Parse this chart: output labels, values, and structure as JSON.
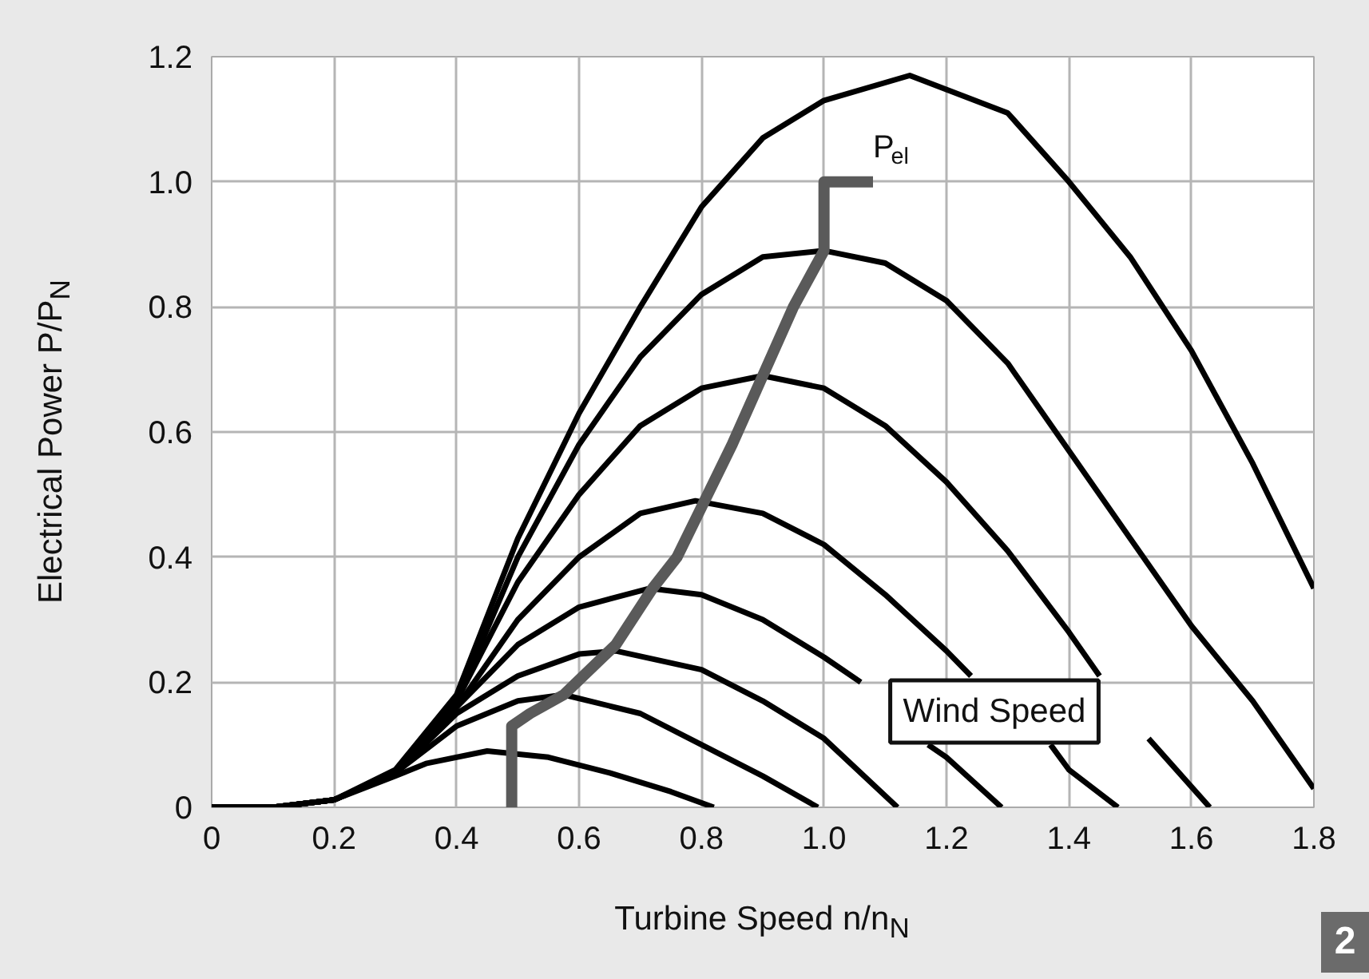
{
  "chart_data": {
    "type": "line",
    "xlabel": "Turbine Speed n/n$_{N}$",
    "ylabel": "Electrical Power P/P$_{N}$",
    "xlim": [
      0,
      1.8
    ],
    "ylim": [
      0,
      1.2
    ],
    "xticks": [
      0,
      0.2,
      0.4,
      0.6,
      0.8,
      {
        "value": 1,
        "label": "1.0"
      },
      1.2,
      1.4,
      1.6,
      1.8
    ],
    "yticks": [
      0,
      0.2,
      0.4,
      0.6,
      0.8,
      {
        "value": 1,
        "label": "1.0"
      },
      1.2
    ],
    "grid": true,
    "legend": false,
    "marker": "none",
    "line_style": "solid",
    "series": [
      {
        "color": "#000000",
        "x": [
          0,
          0.1,
          0.2,
          0.3,
          0.35,
          0.45,
          0.55,
          0.65,
          0.75,
          0.82
        ],
        "values": [
          0,
          0,
          0.012,
          0.05,
          0.07,
          0.09,
          0.08,
          0.055,
          0.025,
          0
        ]
      },
      {
        "color": "#000000",
        "x": [
          0,
          0.1,
          0.2,
          0.3,
          0.4,
          0.5,
          0.575,
          0.7,
          0.8,
          0.9,
          0.99
        ],
        "values": [
          0,
          0,
          0.012,
          0.055,
          0.13,
          0.17,
          0.18,
          0.15,
          0.1,
          0.05,
          0
        ]
      },
      {
        "color": "#000000",
        "x": [
          0,
          0.1,
          0.2,
          0.3,
          0.4,
          0.5,
          0.6,
          0.66,
          0.8,
          0.9,
          1.0,
          1.12
        ],
        "values": [
          0,
          0,
          0.012,
          0.055,
          0.15,
          0.21,
          0.245,
          0.25,
          0.22,
          0.17,
          0.11,
          0
        ]
      },
      {
        "color": "#000000",
        "x": [
          0,
          0.1,
          0.2,
          0.3,
          0.4,
          0.5,
          0.6,
          0.715,
          0.8,
          0.9,
          1.0,
          1.06,
          1.1,
          1.17,
          1.2,
          1.29
        ],
        "values": [
          0,
          0,
          0.012,
          0.055,
          0.16,
          0.26,
          0.32,
          0.35,
          0.34,
          0.3,
          0.24,
          0.2,
          null,
          0.1,
          0.08,
          0
        ]
      },
      {
        "color": "#000000",
        "x": [
          0,
          0.1,
          0.2,
          0.3,
          0.4,
          0.5,
          0.6,
          0.7,
          0.79,
          0.9,
          1.0,
          1.1,
          1.2,
          1.24,
          1.3,
          1.37,
          1.4,
          1.48
        ],
        "values": [
          0,
          0,
          0.012,
          0.055,
          0.16,
          0.3,
          0.4,
          0.47,
          0.49,
          0.47,
          0.42,
          0.34,
          0.25,
          0.21,
          null,
          0.1,
          0.06,
          0
        ]
      },
      {
        "color": "#000000",
        "x": [
          0,
          0.1,
          0.2,
          0.3,
          0.4,
          0.5,
          0.6,
          0.7,
          0.8,
          0.9,
          1.0,
          1.1,
          1.2,
          1.3,
          1.4,
          1.45,
          1.5,
          1.53,
          1.63
        ],
        "values": [
          0,
          0,
          0.012,
          0.055,
          0.17,
          0.36,
          0.5,
          0.61,
          0.67,
          0.69,
          0.67,
          0.61,
          0.52,
          0.41,
          0.28,
          0.21,
          null,
          0.11,
          0
        ]
      },
      {
        "color": "#000000",
        "x": [
          0,
          0.1,
          0.2,
          0.3,
          0.4,
          0.5,
          0.6,
          0.7,
          0.8,
          0.9,
          1.0,
          1.1,
          1.2,
          1.3,
          1.4,
          1.5,
          1.6,
          1.7,
          1.8
        ],
        "values": [
          0,
          0,
          0.012,
          0.055,
          0.17,
          0.4,
          0.58,
          0.72,
          0.82,
          0.88,
          0.89,
          0.87,
          0.81,
          0.71,
          0.57,
          0.43,
          0.29,
          0.17,
          0.03
        ]
      },
      {
        "color": "#000000",
        "x": [
          0,
          0.1,
          0.2,
          0.3,
          0.4,
          0.5,
          0.6,
          0.7,
          0.8,
          0.9,
          1.0,
          1.14,
          1.3,
          1.4,
          1.5,
          1.6,
          1.7,
          1.8
        ],
        "values": [
          0,
          0,
          0.012,
          0.06,
          0.18,
          0.43,
          0.63,
          0.8,
          0.96,
          1.07,
          1.13,
          1.17,
          1.11,
          1.0,
          0.88,
          0.73,
          0.55,
          0.35
        ]
      },
      {
        "name": "P$_{el}$",
        "color": "#5a5a5a",
        "x": [
          0.49,
          0.49,
          0.52,
          0.575,
          0.66,
          0.72,
          0.76,
          0.8,
          0.85,
          0.9,
          0.95,
          1.0,
          1.0,
          1.08
        ],
        "values": [
          0,
          0.13,
          0.15,
          0.18,
          0.26,
          0.35,
          0.4,
          0.48,
          0.58,
          0.69,
          0.8,
          0.89,
          1.0,
          1.0
        ]
      }
    ],
    "annotations": [
      "Wind Speed",
      "2"
    ]
  }
}
